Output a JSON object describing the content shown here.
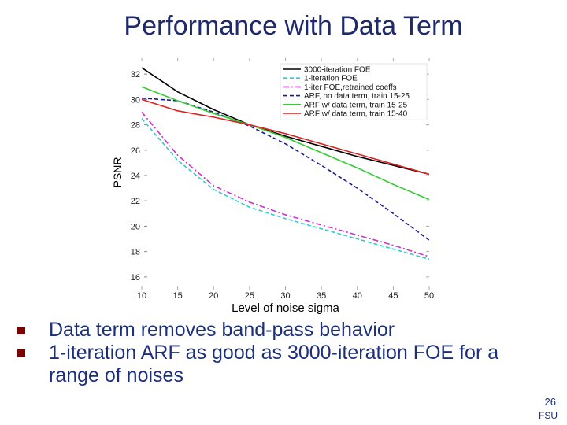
{
  "slide": {
    "title": "Performance with Data Term",
    "bullets": [
      "Data term removes band-pass behavior",
      "1-iteration ARF as good as 3000-iteration FOE for a range of noises"
    ],
    "page_number": "26",
    "footer": "FSU"
  },
  "chart_data": {
    "type": "line",
    "xlabel": "Level of noise sigma",
    "ylabel": "PSNR",
    "xlim": [
      10,
      50
    ],
    "ylim": [
      15,
      33
    ],
    "x_ticks": [
      "10",
      "15",
      "20",
      "25",
      "30",
      "35",
      "40",
      "45",
      "50"
    ],
    "y_ticks": [
      "16",
      "18",
      "20",
      "22",
      "24",
      "26",
      "28",
      "30",
      "32"
    ],
    "legend_position": "top-right",
    "grid": false,
    "series": [
      {
        "name": "3000-iteration FOE",
        "color": "#000000",
        "dash": "solid",
        "x": [
          10,
          15,
          20,
          25,
          30,
          35,
          40,
          45,
          50
        ],
        "y": [
          32.5,
          30.6,
          29.2,
          28.0,
          27.1,
          26.3,
          25.5,
          24.8,
          24.1
        ]
      },
      {
        "name": "1-iteration FOE",
        "color": "#33cccc",
        "dash": "dashed",
        "x": [
          10,
          15,
          20,
          25,
          30,
          35,
          40,
          45,
          50
        ],
        "y": [
          28.5,
          25.2,
          22.9,
          21.5,
          20.6,
          19.8,
          19.0,
          18.2,
          17.4
        ]
      },
      {
        "name": "1-iter FOE,retrained coeffs",
        "color": "#cc33cc",
        "dash": "dashdot",
        "x": [
          10,
          15,
          20,
          25,
          30,
          35,
          40,
          45,
          50
        ],
        "y": [
          29.0,
          25.6,
          23.2,
          21.9,
          20.9,
          20.1,
          19.3,
          18.5,
          17.6
        ]
      },
      {
        "name": "ARF, no data term, train 15-25",
        "color": "#1a1a8c",
        "dash": "dashed",
        "x": [
          10,
          15,
          20,
          25,
          30,
          35,
          40,
          45,
          50
        ],
        "y": [
          30.1,
          29.9,
          29.0,
          27.9,
          26.5,
          24.8,
          23.0,
          21.0,
          18.9
        ]
      },
      {
        "name": "ARF w/ data term, train 15-25",
        "color": "#33cc33",
        "dash": "solid",
        "x": [
          10,
          15,
          20,
          25,
          30,
          35,
          40,
          45,
          50
        ],
        "y": [
          31.0,
          29.9,
          28.9,
          28.0,
          27.0,
          25.8,
          24.6,
          23.3,
          22.1
        ]
      },
      {
        "name": "ARF w/ data term, train 15-40",
        "color": "#dd2222",
        "dash": "solid",
        "x": [
          10,
          15,
          20,
          25,
          30,
          35,
          40,
          45,
          50
        ],
        "y": [
          30.0,
          29.1,
          28.6,
          28.0,
          27.3,
          26.5,
          25.7,
          24.9,
          24.1
        ]
      }
    ]
  }
}
